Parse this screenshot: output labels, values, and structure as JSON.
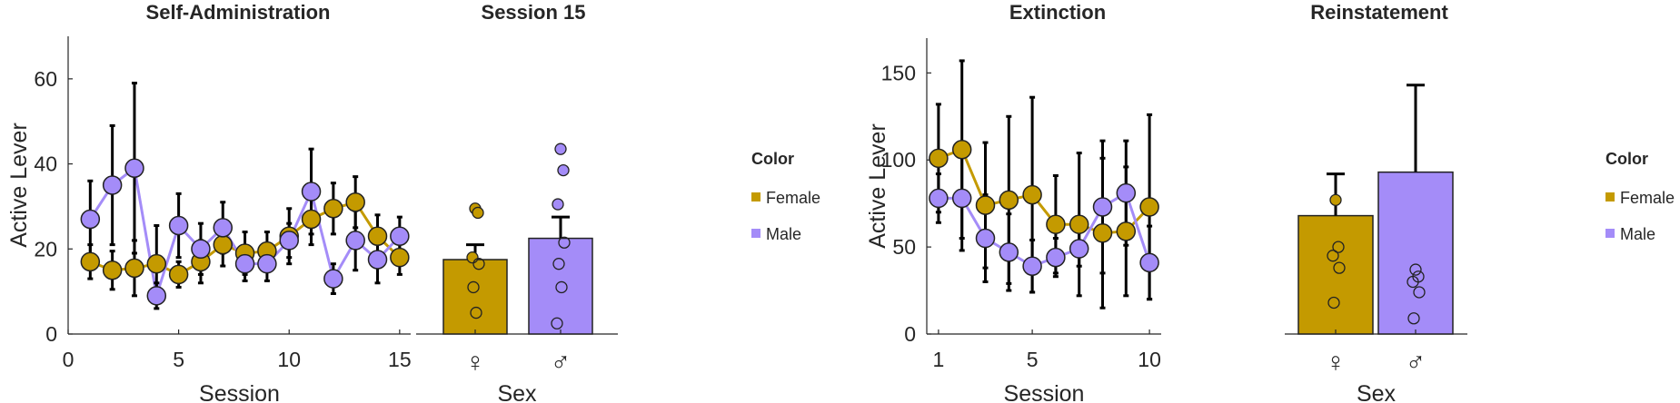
{
  "colors": {
    "female": "#C49A00",
    "male": "#A48CF8",
    "errorbar": "#000000",
    "axis": "#262626"
  },
  "legend": {
    "title": "Color",
    "female_label": "Female",
    "male_label": "Male"
  },
  "chart_data": [
    {
      "id": "self-admin",
      "type": "line",
      "title": "Self-Administration",
      "xlabel": "Session",
      "ylabel": "Active Lever",
      "xlim": [
        0,
        15.5
      ],
      "ylim": [
        0,
        70
      ],
      "xticks": [
        0,
        5,
        10,
        15
      ],
      "yticks": [
        0,
        20,
        40,
        60
      ],
      "x": [
        1,
        2,
        3,
        4,
        5,
        6,
        7,
        8,
        9,
        10,
        11,
        12,
        13,
        14,
        15
      ],
      "series": [
        {
          "name": "Female",
          "color": "#C49A00",
          "values": [
            17,
            15,
            15.5,
            16.5,
            14,
            17,
            21,
            19,
            19.5,
            23,
            27,
            29.5,
            31,
            23,
            18
          ],
          "err": [
            4,
            4.5,
            6.5,
            9,
            3,
            5,
            5,
            5,
            4.5,
            6.5,
            6,
            6,
            6,
            5,
            4
          ]
        },
        {
          "name": "Male",
          "color": "#A48CF8",
          "values": [
            27,
            35,
            39,
            9,
            25.5,
            20,
            25,
            16.5,
            16.5,
            22,
            33.5,
            13,
            22,
            17.5,
            23
          ],
          "err": [
            9,
            14,
            20,
            3,
            7.5,
            6,
            6,
            4,
            4,
            4,
            10,
            3.5,
            7,
            5.5,
            4.5
          ]
        }
      ]
    },
    {
      "id": "session15",
      "type": "bar",
      "title": "Session 15",
      "xlabel": "Sex",
      "ylabel": "",
      "ylim": [
        0,
        70
      ],
      "categories": [
        "♀",
        "♂"
      ],
      "values": [
        17.5,
        22.5
      ],
      "err": [
        3.5,
        5
      ],
      "colors": [
        "#C49A00",
        "#A48CF8"
      ],
      "points": [
        [
          29.5,
          28.5,
          18,
          16.5,
          11,
          5
        ],
        [
          43.5,
          38.5,
          30.5,
          21.5,
          16.5,
          11,
          2.5
        ]
      ]
    },
    {
      "id": "extinction",
      "type": "line",
      "title": "Extinction",
      "xlabel": "Session",
      "ylabel": "Active Lever",
      "xlim": [
        0.5,
        10.5
      ],
      "ylim": [
        0,
        170
      ],
      "xticks": [
        1,
        5,
        10
      ],
      "yticks": [
        0,
        50,
        100,
        150
      ],
      "x": [
        1,
        2,
        3,
        4,
        5,
        6,
        7,
        8,
        9,
        10
      ],
      "series": [
        {
          "name": "Female",
          "color": "#C49A00",
          "values": [
            101,
            106,
            74,
            77,
            80,
            63,
            63,
            58,
            59,
            73
          ],
          "err": [
            31,
            51,
            36,
            48,
            56,
            28,
            41,
            43,
            37,
            53
          ]
        },
        {
          "name": "Male",
          "color": "#A48CF8",
          "values": [
            78,
            78,
            55,
            47,
            39,
            44,
            49,
            73,
            81,
            41
          ],
          "err": [
            14,
            30,
            25,
            22,
            15,
            11,
            10,
            38,
            30,
            21
          ]
        }
      ]
    },
    {
      "id": "reinstatement",
      "type": "bar",
      "title": "Reinstatement",
      "xlabel": "Sex",
      "ylabel": "",
      "ylim": [
        0,
        170
      ],
      "categories": [
        "♀",
        "♂"
      ],
      "values": [
        68,
        93
      ],
      "err": [
        24,
        50
      ],
      "colors": [
        "#C49A00",
        "#A48CF8"
      ],
      "points": [
        [
          77,
          50,
          45,
          38,
          18
        ],
        [
          37,
          33,
          30,
          24,
          9
        ]
      ]
    }
  ]
}
